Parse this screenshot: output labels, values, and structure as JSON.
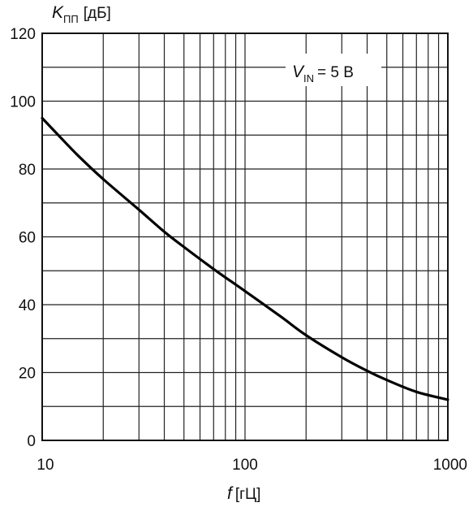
{
  "chart_data": {
    "type": "line",
    "x_scale": "log",
    "xlim": [
      10,
      1000
    ],
    "ylim": [
      0,
      120
    ],
    "grid": true,
    "xlabel": {
      "symbol": "f",
      "unit": "[гЦ]"
    },
    "ylabel": {
      "symbol": "K",
      "subscript": "ПП",
      "unit": "[дБ]"
    },
    "annotation": {
      "symbol": "V",
      "subscript": "IN",
      "text": "= 5 В"
    },
    "x_ticks": [
      {
        "value": 10,
        "label": "10"
      },
      {
        "value": 100,
        "label": "100"
      },
      {
        "value": 1000,
        "label": "1000"
      }
    ],
    "y_ticks": [
      {
        "value": 0,
        "label": "0"
      },
      {
        "value": 20,
        "label": "20"
      },
      {
        "value": 40,
        "label": "40"
      },
      {
        "value": 60,
        "label": "60"
      },
      {
        "value": 80,
        "label": "80"
      },
      {
        "value": 100,
        "label": "100"
      },
      {
        "value": 120,
        "label": "120"
      }
    ],
    "series": [
      {
        "color": "#000000",
        "points": [
          {
            "x": 10,
            "y": 95
          },
          {
            "x": 12,
            "y": 90
          },
          {
            "x": 15,
            "y": 84
          },
          {
            "x": 20,
            "y": 77
          },
          {
            "x": 30,
            "y": 68
          },
          {
            "x": 40,
            "y": 61.5
          },
          {
            "x": 50,
            "y": 57
          },
          {
            "x": 70,
            "y": 50.5
          },
          {
            "x": 100,
            "y": 44
          },
          {
            "x": 150,
            "y": 36.5
          },
          {
            "x": 200,
            "y": 31
          },
          {
            "x": 300,
            "y": 24.5
          },
          {
            "x": 400,
            "y": 20.5
          },
          {
            "x": 500,
            "y": 17.8
          },
          {
            "x": 700,
            "y": 14.3
          },
          {
            "x": 1000,
            "y": 12
          }
        ]
      }
    ]
  }
}
